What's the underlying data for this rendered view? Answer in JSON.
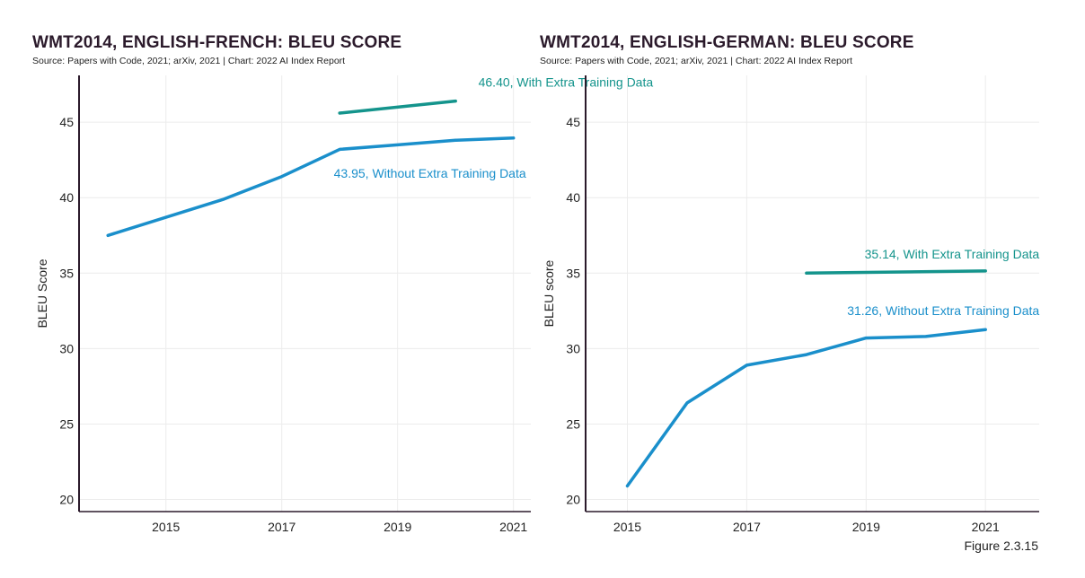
{
  "figure_label": "Figure 2.3.15",
  "chart_data": [
    {
      "type": "line",
      "title": "WMT2014, ENGLISH-FRENCH: BLEU SCORE",
      "subtitle": "Source: Papers with Code, 2021; arXiv, 2021 | Chart: 2022 AI Index Report",
      "ylabel": "BLEU Score",
      "xlabel": "",
      "xlim": [
        2013.5,
        2021.3
      ],
      "ylim": [
        19.2,
        48.1
      ],
      "xticks": [
        2015,
        2017,
        2019,
        2021
      ],
      "yticks": [
        20,
        25,
        30,
        35,
        40,
        45
      ],
      "grid": true,
      "series": [
        {
          "name": "With Extra Training Data",
          "color": "#14948c",
          "x": [
            2018,
            2020
          ],
          "y": [
            45.6,
            46.4
          ],
          "label": "46.40, With Extra Training Data"
        },
        {
          "name": "Without Extra Training Data",
          "color": "#1a8fcb",
          "x": [
            2014,
            2016,
            2017,
            2018,
            2019,
            2020,
            2021
          ],
          "y": [
            37.5,
            39.9,
            41.4,
            43.2,
            43.5,
            43.8,
            43.95
          ],
          "label": "43.95, Without Extra Training Data"
        }
      ]
    },
    {
      "type": "line",
      "title": "WMT2014, ENGLISH-GERMAN: BLEU SCORE",
      "subtitle": "Source: Papers with Code, 2021; arXiv, 2021 | Chart: 2022 AI Index Report",
      "ylabel": "BLEU score",
      "xlabel": "",
      "xlim": [
        2014.3,
        2021.9
      ],
      "ylim": [
        19.2,
        48.1
      ],
      "xticks": [
        2015,
        2017,
        2019,
        2021
      ],
      "yticks": [
        20,
        25,
        30,
        35,
        40,
        45
      ],
      "grid": true,
      "series": [
        {
          "name": "With Extra Training Data",
          "color": "#14948c",
          "x": [
            2018,
            2021
          ],
          "y": [
            35.0,
            35.14
          ],
          "label": "35.14, With Extra Training Data"
        },
        {
          "name": "Without Extra Training Data",
          "color": "#1a8fcb",
          "x": [
            2015,
            2016,
            2017,
            2018,
            2019,
            2020,
            2021
          ],
          "y": [
            20.9,
            26.4,
            28.9,
            29.6,
            30.7,
            30.8,
            31.26
          ],
          "label": "31.26, Without Extra Training Data"
        }
      ]
    }
  ]
}
